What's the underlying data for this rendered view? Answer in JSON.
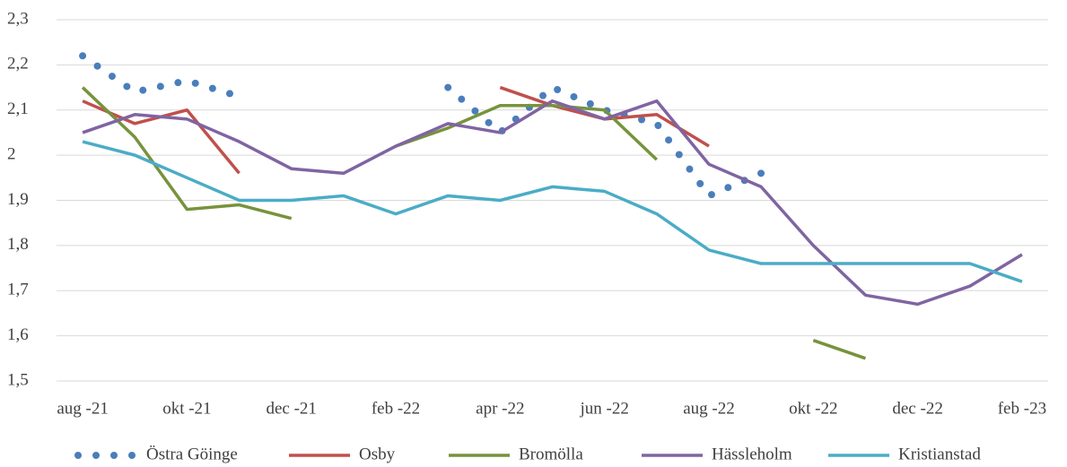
{
  "chart_data": {
    "type": "line",
    "categories": [
      "aug -21",
      null,
      "okt -21",
      null,
      "dec -21",
      null,
      "feb -22",
      null,
      "apr -22",
      null,
      "jun -22",
      null,
      "aug -22",
      null,
      "okt -22",
      null,
      "dec -22",
      null,
      "feb -23"
    ],
    "series": [
      {
        "name": "Östra Göinge",
        "color": "#4a7ebb",
        "style": "dotted",
        "values": [
          2.22,
          2.14,
          2.165,
          2.13,
          null,
          null,
          null,
          2.15,
          2.05,
          2.15,
          2.1,
          2.07,
          1.91,
          1.96,
          null,
          null,
          null,
          null,
          null
        ]
      },
      {
        "name": "Osby",
        "color": "#c0504d",
        "values": [
          2.12,
          2.07,
          2.1,
          1.96,
          null,
          null,
          null,
          null,
          2.15,
          2.11,
          2.08,
          2.09,
          2.02,
          null,
          null,
          null,
          null,
          null,
          null
        ]
      },
      {
        "name": "Bromölla",
        "color": "#77933c",
        "values": [
          2.15,
          2.04,
          1.88,
          1.89,
          1.86,
          null,
          2.02,
          2.06,
          2.11,
          2.11,
          2.1,
          1.99,
          null,
          null,
          1.59,
          1.55,
          null,
          null,
          null
        ]
      },
      {
        "name": "Hässleholm",
        "color": "#8064a2",
        "values": [
          2.05,
          2.09,
          2.08,
          2.03,
          1.97,
          1.96,
          2.02,
          2.07,
          2.05,
          2.12,
          2.08,
          2.12,
          1.98,
          1.93,
          1.8,
          1.69,
          1.67,
          1.71,
          1.78
        ]
      },
      {
        "name": "Kristianstad",
        "color": "#4bacc6",
        "values": [
          2.03,
          2.0,
          1.95,
          1.9,
          1.9,
          1.91,
          1.87,
          1.91,
          1.9,
          1.93,
          1.92,
          1.87,
          1.79,
          1.76,
          1.76,
          1.76,
          1.76,
          1.76,
          1.72
        ]
      }
    ],
    "ylim": [
      1.5,
      2.3
    ],
    "yticks": [
      {
        "value": 1.5,
        "label": "1,5"
      },
      {
        "value": 1.6,
        "label": "1,6"
      },
      {
        "value": 1.7,
        "label": "1,7"
      },
      {
        "value": 1.8,
        "label": "1,8"
      },
      {
        "value": 1.9,
        "label": "1,9"
      },
      2,
      {
        "value": 2.1,
        "label": "2,1"
      },
      {
        "value": 2.2,
        "label": "2,2"
      },
      {
        "value": 2.3,
        "label": "2,3"
      }
    ],
    "grid": true,
    "legend": "bottom"
  }
}
